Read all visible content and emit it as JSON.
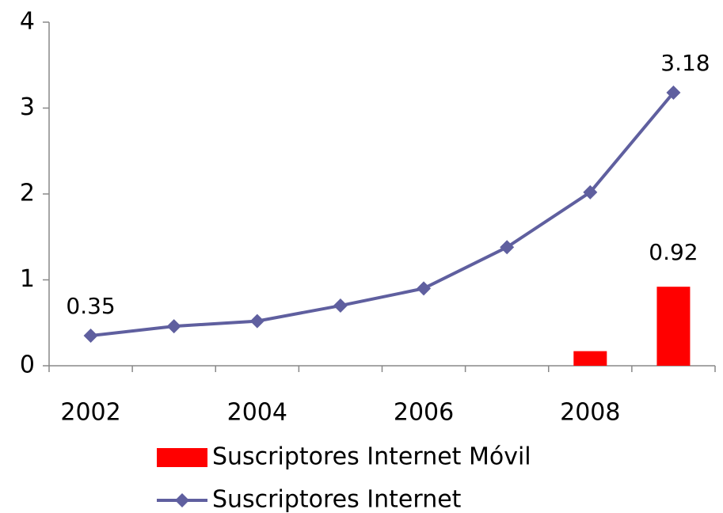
{
  "chart_data": {
    "type": "bar-line",
    "categories": [
      "2002",
      null,
      "2004",
      null,
      "2006",
      null,
      "2008",
      null
    ],
    "series": [
      {
        "name": "Suscriptores Internet Móvil",
        "type": "bar",
        "color": "#ff0000",
        "values": [
          null,
          null,
          null,
          null,
          null,
          null,
          0.17,
          0.92
        ],
        "value_labels": [
          null,
          null,
          null,
          null,
          null,
          null,
          null,
          "0.92"
        ]
      },
      {
        "name": "Suscriptores Internet",
        "type": "line",
        "color": "#5f5f9f",
        "values": [
          0.35,
          0.46,
          0.52,
          0.7,
          0.9,
          1.38,
          2.02,
          3.18
        ],
        "value_labels": [
          "0.35",
          null,
          null,
          null,
          null,
          null,
          null,
          "3.18"
        ]
      }
    ],
    "ylim": [
      0,
      4
    ],
    "yticks": [
      0,
      1,
      2,
      3,
      4
    ],
    "grid": false,
    "legend": "bottom"
  }
}
